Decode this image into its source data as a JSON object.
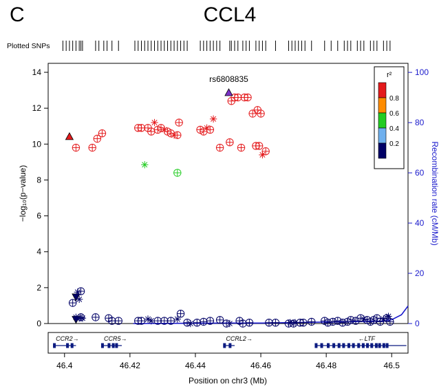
{
  "panel_letter": "C",
  "gene_title": "CCL4",
  "plotted_snps_label": "Plotted SNPs",
  "colors": {
    "r2_red": "#e41a1c",
    "r2_orange": "#ff8c00",
    "r2_green": "#22cc22",
    "r2_lightblue": "#6fb0ee",
    "r2_navy": "#000066",
    "lead_snp": "#7a32c8",
    "recomb_line": "#1a1acc",
    "gene_track": "#0a1a80"
  },
  "chart_data": {
    "type": "scatter",
    "xlabel": "Position on chr3 (Mb)",
    "ylabel": "−log₁₀(p−value)",
    "ylabel_right": "Recombination rate (cM/Mb)",
    "xlim": [
      46.395,
      46.505
    ],
    "ylim": [
      0,
      14.5
    ],
    "ylim_right": [
      0,
      103.6
    ],
    "xticks": [
      46.4,
      46.42,
      46.44,
      46.46,
      46.48,
      46.5
    ],
    "xtick_labels": [
      "46.4",
      "46.42",
      "46.44",
      "46.46",
      "46.48",
      "46.5"
    ],
    "yticks": [
      0,
      2,
      4,
      6,
      8,
      10,
      12,
      14
    ],
    "ytick_labels": [
      "0",
      "2",
      "4",
      "6",
      "8",
      "10",
      "12",
      "14"
    ],
    "yticks_right": [
      0,
      20,
      40,
      60,
      80,
      100
    ],
    "ytick_right_labels": [
      "0",
      "20",
      "40",
      "60",
      "80",
      "100"
    ],
    "grid": false,
    "legend": {
      "title": "r²",
      "placement": "top-right",
      "bins": [
        {
          "color": "#e41a1c",
          "label": "0.8"
        },
        {
          "color": "#ff8c00",
          "label": "0.6"
        },
        {
          "color": "#22cc22",
          "label": "0.4"
        },
        {
          "color": "#6fb0ee",
          "label": "0.2"
        },
        {
          "color": "#000066",
          "label": ""
        }
      ]
    },
    "lead_snp": {
      "name": "rs6808835",
      "x": 46.4502,
      "y": 12.85,
      "shape": "triangle-up"
    },
    "series": [
      {
        "r2_bin": "0.8-1.0",
        "color": "#e41a1c",
        "points": [
          {
            "x": 46.4015,
            "y": 10.4,
            "shape": "triangle-up"
          },
          {
            "x": 46.4035,
            "y": 9.8,
            "shape": "circle"
          },
          {
            "x": 46.4085,
            "y": 9.8,
            "shape": "circle"
          },
          {
            "x": 46.41,
            "y": 10.3,
            "shape": "circle"
          },
          {
            "x": 46.4115,
            "y": 10.6,
            "shape": "circle"
          },
          {
            "x": 46.4225,
            "y": 10.9,
            "shape": "circle"
          },
          {
            "x": 46.4235,
            "y": 10.9,
            "shape": "circle"
          },
          {
            "x": 46.4255,
            "y": 10.9,
            "shape": "circle"
          },
          {
            "x": 46.4265,
            "y": 10.7,
            "shape": "circle"
          },
          {
            "x": 46.4275,
            "y": 11.2,
            "shape": "star"
          },
          {
            "x": 46.4285,
            "y": 10.8,
            "shape": "circle"
          },
          {
            "x": 46.4295,
            "y": 10.9,
            "shape": "circle"
          },
          {
            "x": 46.4305,
            "y": 10.8,
            "shape": "star"
          },
          {
            "x": 46.4315,
            "y": 10.7,
            "shape": "circle"
          },
          {
            "x": 46.4325,
            "y": 10.6,
            "shape": "circle"
          },
          {
            "x": 46.4335,
            "y": 10.5,
            "shape": "star"
          },
          {
            "x": 46.4345,
            "y": 10.5,
            "shape": "circle"
          },
          {
            "x": 46.435,
            "y": 11.2,
            "shape": "circle"
          },
          {
            "x": 46.4415,
            "y": 10.8,
            "shape": "circle"
          },
          {
            "x": 46.4425,
            "y": 10.7,
            "shape": "circle"
          },
          {
            "x": 46.4435,
            "y": 10.9,
            "shape": "star"
          },
          {
            "x": 46.4445,
            "y": 10.8,
            "shape": "circle"
          },
          {
            "x": 46.4455,
            "y": 11.4,
            "shape": "star"
          },
          {
            "x": 46.4475,
            "y": 9.8,
            "shape": "circle"
          },
          {
            "x": 46.4505,
            "y": 10.1,
            "shape": "circle"
          },
          {
            "x": 46.451,
            "y": 12.4,
            "shape": "circle"
          },
          {
            "x": 46.452,
            "y": 12.6,
            "shape": "circle"
          },
          {
            "x": 46.453,
            "y": 12.6,
            "shape": "circle"
          },
          {
            "x": 46.454,
            "y": 9.8,
            "shape": "circle"
          },
          {
            "x": 46.455,
            "y": 12.6,
            "shape": "circle"
          },
          {
            "x": 46.456,
            "y": 12.6,
            "shape": "circle"
          },
          {
            "x": 46.4575,
            "y": 11.7,
            "shape": "circle"
          },
          {
            "x": 46.4585,
            "y": 9.9,
            "shape": "circle"
          },
          {
            "x": 46.459,
            "y": 11.9,
            "shape": "circle"
          },
          {
            "x": 46.4595,
            "y": 9.9,
            "shape": "circle"
          },
          {
            "x": 46.46,
            "y": 11.7,
            "shape": "circle"
          },
          {
            "x": 46.4605,
            "y": 9.4,
            "shape": "star"
          },
          {
            "x": 46.4615,
            "y": 9.6,
            "shape": "circle"
          }
        ]
      },
      {
        "r2_bin": "0.4-0.6",
        "color": "#22cc22",
        "points": [
          {
            "x": 46.4245,
            "y": 8.85,
            "shape": "star"
          },
          {
            "x": 46.4345,
            "y": 8.4,
            "shape": "circle"
          }
        ]
      },
      {
        "r2_bin": "0.0-0.2",
        "color": "#000066",
        "points": [
          {
            "x": 46.4025,
            "y": 1.15,
            "shape": "circle"
          },
          {
            "x": 46.4035,
            "y": 1.5,
            "shape": "triangle-down"
          },
          {
            "x": 46.404,
            "y": 1.75,
            "shape": "star"
          },
          {
            "x": 46.4045,
            "y": 1.35,
            "shape": "star"
          },
          {
            "x": 46.405,
            "y": 1.8,
            "shape": "circle"
          },
          {
            "x": 46.4035,
            "y": 0.25,
            "shape": "triangle-down"
          },
          {
            "x": 46.4035,
            "y": 0.35,
            "shape": "star"
          },
          {
            "x": 46.4045,
            "y": 0.3,
            "shape": "star"
          },
          {
            "x": 46.405,
            "y": 0.35,
            "shape": "circle"
          },
          {
            "x": 46.4055,
            "y": 0.3,
            "shape": "star"
          },
          {
            "x": 46.4095,
            "y": 0.35,
            "shape": "circle"
          },
          {
            "x": 46.4135,
            "y": 0.3,
            "shape": "circle"
          },
          {
            "x": 46.4145,
            "y": 0.15,
            "shape": "circle"
          },
          {
            "x": 46.4165,
            "y": 0.15,
            "shape": "circle"
          },
          {
            "x": 46.4225,
            "y": 0.15,
            "shape": "circle"
          },
          {
            "x": 46.4235,
            "y": 0.15,
            "shape": "circle"
          },
          {
            "x": 46.4255,
            "y": 0.25,
            "shape": "star"
          },
          {
            "x": 46.4265,
            "y": 0.15,
            "shape": "star"
          },
          {
            "x": 46.4285,
            "y": 0.15,
            "shape": "circle"
          },
          {
            "x": 46.4305,
            "y": 0.15,
            "shape": "circle"
          },
          {
            "x": 46.4325,
            "y": 0.15,
            "shape": "circle"
          },
          {
            "x": 46.4345,
            "y": 0.25,
            "shape": "star"
          },
          {
            "x": 46.4355,
            "y": 0.55,
            "shape": "circle"
          },
          {
            "x": 46.4375,
            "y": 0.05,
            "shape": "circle"
          },
          {
            "x": 46.4385,
            "y": 0.0,
            "shape": "star"
          },
          {
            "x": 46.4405,
            "y": 0.05,
            "shape": "circle"
          },
          {
            "x": 46.4425,
            "y": 0.1,
            "shape": "circle"
          },
          {
            "x": 46.4445,
            "y": 0.15,
            "shape": "circle"
          },
          {
            "x": 46.4475,
            "y": 0.2,
            "shape": "circle"
          },
          {
            "x": 46.4495,
            "y": 0.0,
            "shape": "circle"
          },
          {
            "x": 46.4505,
            "y": 0.0,
            "shape": "star"
          },
          {
            "x": 46.4535,
            "y": 0.15,
            "shape": "circle"
          },
          {
            "x": 46.4545,
            "y": 0.0,
            "shape": "circle"
          },
          {
            "x": 46.4565,
            "y": 0.05,
            "shape": "circle"
          },
          {
            "x": 46.4625,
            "y": 0.05,
            "shape": "circle"
          },
          {
            "x": 46.4645,
            "y": 0.05,
            "shape": "circle"
          },
          {
            "x": 46.4685,
            "y": 0.0,
            "shape": "circle"
          },
          {
            "x": 46.469,
            "y": 0.05,
            "shape": "star"
          },
          {
            "x": 46.47,
            "y": 0.0,
            "shape": "circle"
          },
          {
            "x": 46.4705,
            "y": 0.05,
            "shape": "star"
          },
          {
            "x": 46.472,
            "y": 0.05,
            "shape": "circle"
          },
          {
            "x": 46.473,
            "y": 0.05,
            "shape": "circle"
          },
          {
            "x": 46.4755,
            "y": 0.1,
            "shape": "circle"
          },
          {
            "x": 46.4795,
            "y": 0.15,
            "shape": "circle"
          },
          {
            "x": 46.4805,
            "y": 0.05,
            "shape": "circle"
          },
          {
            "x": 46.482,
            "y": 0.1,
            "shape": "circle"
          },
          {
            "x": 46.4835,
            "y": 0.15,
            "shape": "circle"
          },
          {
            "x": 46.485,
            "y": 0.05,
            "shape": "circle"
          },
          {
            "x": 46.4865,
            "y": 0.1,
            "shape": "circle"
          },
          {
            "x": 46.4875,
            "y": 0.2,
            "shape": "circle"
          },
          {
            "x": 46.489,
            "y": 0.15,
            "shape": "circle"
          },
          {
            "x": 46.4905,
            "y": 0.3,
            "shape": "circle"
          },
          {
            "x": 46.4915,
            "y": 0.25,
            "shape": "star"
          },
          {
            "x": 46.4925,
            "y": 0.2,
            "shape": "circle"
          },
          {
            "x": 46.4935,
            "y": 0.1,
            "shape": "circle"
          },
          {
            "x": 46.4945,
            "y": 0.2,
            "shape": "circle"
          },
          {
            "x": 46.4955,
            "y": 0.3,
            "shape": "circle"
          },
          {
            "x": 46.4965,
            "y": 0.1,
            "shape": "circle"
          },
          {
            "x": 46.4975,
            "y": 0.25,
            "shape": "star"
          },
          {
            "x": 46.4985,
            "y": 0.3,
            "shape": "circle"
          },
          {
            "x": 46.499,
            "y": 0.4,
            "shape": "star"
          },
          {
            "x": 46.4995,
            "y": 0.1,
            "shape": "circle"
          }
        ]
      }
    ],
    "recombination_rate": {
      "x": [
        46.421,
        46.44,
        46.45,
        46.46,
        46.47,
        46.48,
        46.49,
        46.497,
        46.5,
        46.503,
        46.505
      ],
      "y": [
        0.0,
        0.1,
        0.2,
        0.2,
        0.4,
        0.6,
        0.8,
        1.0,
        1.5,
        3.5,
        7.0
      ]
    },
    "plotted_snps_x": [
      46.3995,
      46.4005,
      46.4015,
      46.4025,
      46.4035,
      46.4045,
      46.405,
      46.4055,
      46.4095,
      46.4105,
      46.412,
      46.413,
      46.4145,
      46.4165,
      46.4215,
      46.4225,
      46.4235,
      46.4245,
      46.4255,
      46.4265,
      46.4275,
      46.4285,
      46.4295,
      46.4305,
      46.4315,
      46.4325,
      46.4335,
      46.4345,
      46.4355,
      46.4365,
      46.4375,
      46.4415,
      46.4425,
      46.4435,
      46.4445,
      46.4455,
      46.4465,
      46.4475,
      46.4505,
      46.451,
      46.452,
      46.453,
      46.4545,
      46.4555,
      46.4565,
      46.4585,
      46.4595,
      46.4605,
      46.4615,
      46.4645,
      46.4685,
      46.4695,
      46.4705,
      46.4715,
      46.4725,
      46.4735,
      46.4755,
      46.4795,
      46.4815,
      46.4835,
      46.4855,
      46.4865,
      46.4875,
      46.4895,
      46.4905,
      46.4915,
      46.4935,
      46.4945,
      46.4955,
      46.4975,
      46.4985,
      46.4995
    ],
    "genes": [
      {
        "name": "CCR2",
        "label": "CCR2→",
        "start": 46.3965,
        "end": 46.4035,
        "strand": "+",
        "exons": [
          46.3968,
          46.4008,
          46.4022
        ]
      },
      {
        "name": "CCR5",
        "label": "CCR5→",
        "start": 46.4112,
        "end": 46.4175,
        "strand": "+",
        "exons": [
          46.4115,
          46.4135,
          46.4148,
          46.4158
        ]
      },
      {
        "name": "CCRL2",
        "label": "CCRL2→",
        "start": 46.4485,
        "end": 46.452,
        "strand": "+",
        "exons": [
          46.4488,
          46.4505
        ]
      },
      {
        "name": "LTF",
        "label": "←LTF",
        "start": 46.4765,
        "end": 46.5045,
        "strand": "-",
        "exons": [
          46.4768,
          46.4785,
          46.4805,
          46.4822,
          46.4838,
          46.4852,
          46.4868,
          46.4882,
          46.4898,
          46.4912,
          46.4925,
          46.4938,
          46.4952,
          46.4962,
          46.4975,
          46.4985
        ]
      }
    ]
  }
}
